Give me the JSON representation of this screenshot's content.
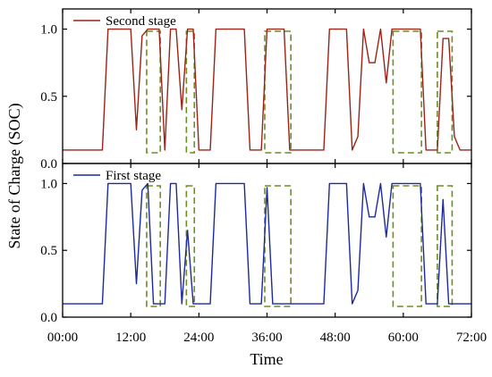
{
  "chart_data": {
    "type": "line",
    "xlabel": "Time",
    "ylabel": "State of Charge (SOC)",
    "x_ticks": [
      "00:00",
      "12:00",
      "24:00",
      "36:00",
      "48:00",
      "60:00",
      "72:00"
    ],
    "x_tick_hours": [
      0,
      12,
      24,
      36,
      48,
      60,
      72
    ],
    "xlim": [
      0,
      72
    ],
    "panels": [
      {
        "position": "top",
        "ylim": [
          0.0,
          1.15
        ],
        "y_ticks": [
          "0.0",
          "0.5",
          "1.0"
        ],
        "y_tick_values": [
          0.0,
          0.5,
          1.0
        ],
        "legend_placement": "top-left",
        "series": [
          {
            "name": "Second stage",
            "color": "#9b2318",
            "x": [
              0,
              1,
              2,
              3,
              4,
              5,
              6,
              7,
              8,
              9,
              10,
              11,
              12,
              13,
              14,
              15,
              16,
              17,
              18,
              19,
              20,
              21,
              22,
              23,
              24,
              25,
              26,
              27,
              28,
              29,
              30,
              31,
              32,
              33,
              34,
              35,
              36,
              37,
              38,
              39,
              40,
              41,
              42,
              43,
              44,
              45,
              46,
              47,
              48,
              49,
              50,
              51,
              52,
              53,
              54,
              55,
              56,
              57,
              58,
              59,
              60,
              61,
              62,
              63,
              64,
              65,
              66,
              67,
              68,
              69,
              70,
              71,
              72
            ],
            "values": [
              0.1,
              0.1,
              0.1,
              0.1,
              0.1,
              0.1,
              0.1,
              0.1,
              1.0,
              1.0,
              1.0,
              1.0,
              1.0,
              0.25,
              0.95,
              1.0,
              1.0,
              1.0,
              0.1,
              1.0,
              1.0,
              0.4,
              1.0,
              1.0,
              0.1,
              0.1,
              0.1,
              1.0,
              1.0,
              1.0,
              1.0,
              1.0,
              1.0,
              0.1,
              0.1,
              0.1,
              1.0,
              1.0,
              1.0,
              1.0,
              0.1,
              0.1,
              0.1,
              0.1,
              0.1,
              0.1,
              0.1,
              1.0,
              1.0,
              1.0,
              1.0,
              0.1,
              0.2,
              1.0,
              0.75,
              0.75,
              1.0,
              0.6,
              1.0,
              1.0,
              1.0,
              1.0,
              1.0,
              1.0,
              0.1,
              0.1,
              0.1,
              0.93,
              0.93,
              0.2,
              0.1,
              0.1,
              0.1
            ]
          }
        ]
      },
      {
        "position": "bottom",
        "ylim": [
          0.0,
          1.15
        ],
        "y_ticks": [
          "0.0",
          "0.5",
          "1.0"
        ],
        "y_tick_values": [
          0.0,
          0.5,
          1.0
        ],
        "legend_placement": "top-left",
        "series": [
          {
            "name": "First stage",
            "color": "#1c2a9c",
            "x": [
              0,
              1,
              2,
              3,
              4,
              5,
              6,
              7,
              8,
              9,
              10,
              11,
              12,
              13,
              14,
              15,
              16,
              17,
              18,
              19,
              20,
              21,
              22,
              23,
              24,
              25,
              26,
              27,
              28,
              29,
              30,
              31,
              32,
              33,
              34,
              35,
              36,
              37,
              38,
              39,
              40,
              41,
              42,
              43,
              44,
              45,
              46,
              47,
              48,
              49,
              50,
              51,
              52,
              53,
              54,
              55,
              56,
              57,
              58,
              59,
              60,
              61,
              62,
              63,
              64,
              65,
              66,
              67,
              68,
              69,
              70,
              71,
              72
            ],
            "values": [
              0.1,
              0.1,
              0.1,
              0.1,
              0.1,
              0.1,
              0.1,
              0.1,
              1.0,
              1.0,
              1.0,
              1.0,
              1.0,
              0.25,
              0.95,
              1.0,
              0.1,
              0.1,
              0.1,
              1.0,
              1.0,
              0.1,
              0.65,
              0.1,
              0.1,
              0.1,
              0.1,
              1.0,
              1.0,
              1.0,
              1.0,
              1.0,
              1.0,
              0.1,
              0.1,
              0.1,
              0.97,
              0.1,
              0.1,
              0.1,
              0.1,
              0.1,
              0.1,
              0.1,
              0.1,
              0.1,
              0.1,
              1.0,
              1.0,
              1.0,
              1.0,
              0.1,
              0.2,
              1.0,
              0.75,
              0.75,
              1.0,
              0.6,
              1.0,
              1.0,
              1.0,
              1.0,
              1.0,
              1.0,
              0.1,
              0.1,
              0.1,
              0.88,
              0.1,
              0.1,
              0.1,
              0.1,
              0.1
            ]
          }
        ]
      }
    ],
    "highlight_regions": {
      "style": "dashed",
      "color": "#6b8e23",
      "ranges_hours": [
        [
          14.8,
          17.2
        ],
        [
          21.8,
          23.2
        ],
        [
          35.6,
          40.2
        ],
        [
          58.2,
          63.2
        ],
        [
          66.0,
          68.6
        ]
      ]
    },
    "grid": false
  }
}
